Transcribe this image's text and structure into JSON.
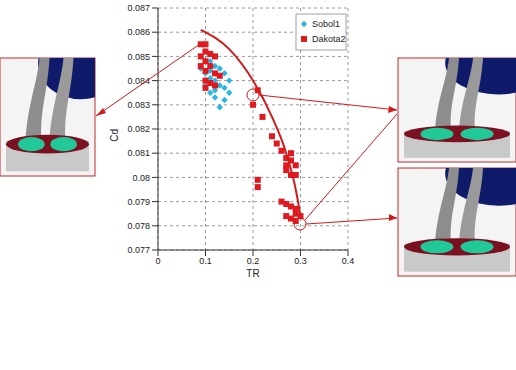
{
  "chart_data": {
    "type": "scatter",
    "xlabel": "TR",
    "ylabel": "Cd",
    "xlim": [
      0,
      0.4
    ],
    "xticks": [
      0,
      0.1,
      0.2,
      0.3,
      0.4
    ],
    "ylim": [
      0.077,
      0.087
    ],
    "yticks": [
      0.077,
      0.078,
      0.079,
      0.08,
      0.081,
      0.082,
      0.083,
      0.084,
      0.085,
      0.086,
      0.087
    ],
    "grid": true,
    "legend": "upper right",
    "series": [
      {
        "name": "Sobol1",
        "color": "#29b6e6",
        "marker": "diamond",
        "x": [
          0.1,
          0.11,
          0.12,
          0.13,
          0.1,
          0.11,
          0.12,
          0.14,
          0.13,
          0.12,
          0.11,
          0.14,
          0.15,
          0.12,
          0.1,
          0.09,
          0.15,
          0.13,
          0.11,
          0.14
        ],
        "values": [
          0.0852,
          0.0848,
          0.0846,
          0.0845,
          0.0843,
          0.0841,
          0.084,
          0.0843,
          0.0838,
          0.0836,
          0.0835,
          0.0832,
          0.0835,
          0.0833,
          0.0838,
          0.0845,
          0.084,
          0.0829,
          0.0844,
          0.0837
        ]
      },
      {
        "name": "Dakota2",
        "color": "#e0191e",
        "marker": "square",
        "x": [
          0.09,
          0.1,
          0.1,
          0.11,
          0.12,
          0.1,
          0.09,
          0.11,
          0.1,
          0.12,
          0.1,
          0.11,
          0.1,
          0.12,
          0.13,
          0.09,
          0.21,
          0.2,
          0.22,
          0.24,
          0.25,
          0.26,
          0.27,
          0.27,
          0.28,
          0.28,
          0.27,
          0.28,
          0.29,
          0.29,
          0.26,
          0.27,
          0.28,
          0.29,
          0.29,
          0.3,
          0.28,
          0.27,
          0.29,
          0.21,
          0.21
        ],
        "values": [
          0.0855,
          0.0855,
          0.0852,
          0.0851,
          0.085,
          0.0848,
          0.0846,
          0.0846,
          0.0844,
          0.0843,
          0.084,
          0.0839,
          0.0837,
          0.0838,
          0.0842,
          0.085,
          0.0836,
          0.083,
          0.0825,
          0.0817,
          0.0814,
          0.0811,
          0.0808,
          0.0805,
          0.081,
          0.0807,
          0.0803,
          0.0801,
          0.0805,
          0.0801,
          0.079,
          0.0789,
          0.0788,
          0.0787,
          0.0785,
          0.0784,
          0.0783,
          0.0784,
          0.0782,
          0.0799,
          0.0796
        ]
      },
      {
        "type": "line",
        "color": "#d21a1a",
        "line_style": "solid",
        "x": [
          0.09,
          0.15,
          0.2,
          0.24,
          0.27,
          0.29,
          0.3
        ],
        "values": [
          0.0861,
          0.0853,
          0.084,
          0.0825,
          0.081,
          0.0795,
          0.0784
        ]
      }
    ]
  }
}
